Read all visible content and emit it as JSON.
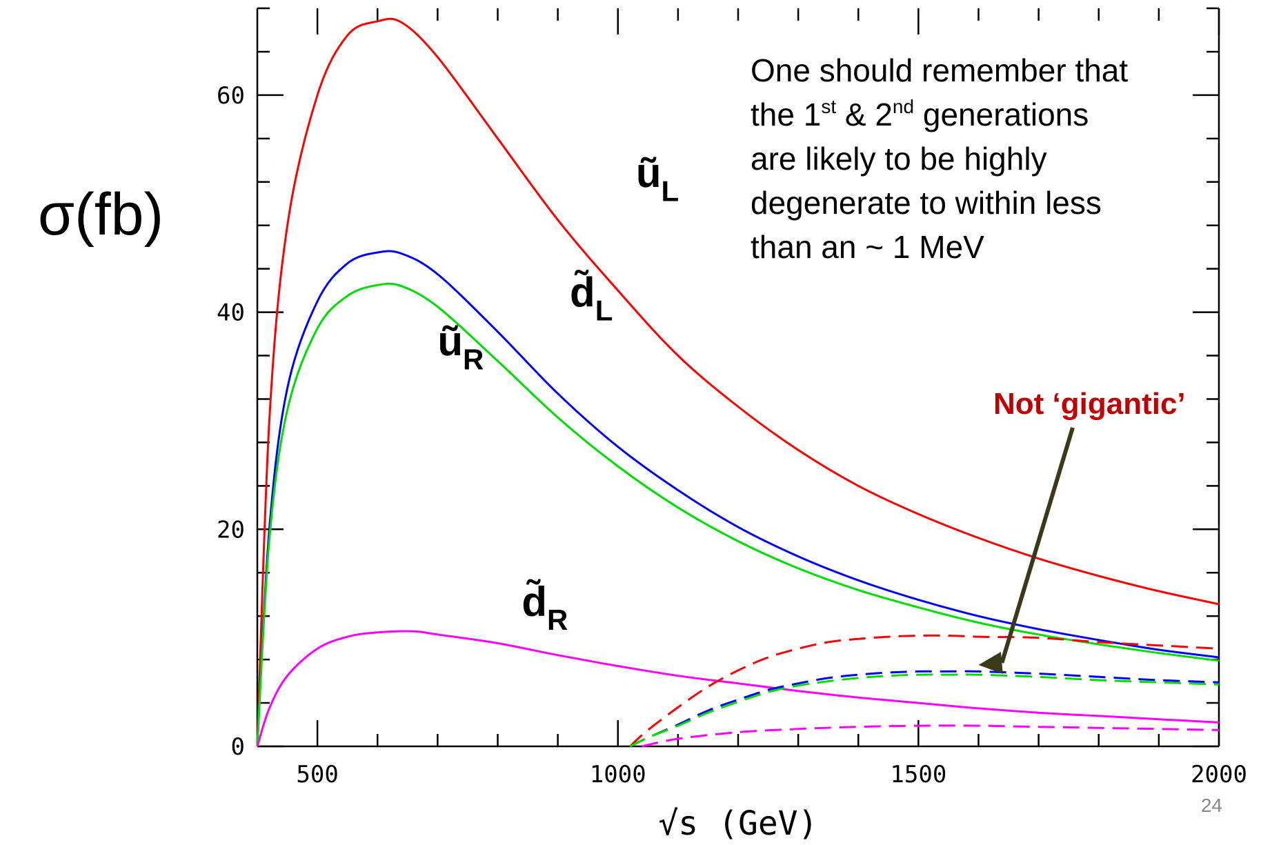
{
  "chart_data": {
    "type": "line",
    "title": "",
    "xlabel": "√s (GeV)",
    "ylabel": "σ(fb)",
    "ylabel_axis": "σ (fb)",
    "xlim": [
      400,
      2000
    ],
    "ylim": [
      0,
      68
    ],
    "x_ticks": [
      500,
      1000,
      1500,
      2000
    ],
    "y_ticks": [
      0,
      20,
      40,
      60
    ],
    "grid": false,
    "legend": "none",
    "series": [
      {
        "label_main": "ũ",
        "label_sub": "L",
        "color": "#ff0000",
        "style": "solid",
        "x": [
          400,
          420,
          450,
          500,
          550,
          600,
          640,
          700,
          800,
          900,
          1000,
          1100,
          1200,
          1300,
          1400,
          1500,
          1600,
          1700,
          1800,
          1900,
          2000
        ],
        "y": [
          0,
          30,
          48,
          60,
          65.5,
          66.8,
          66.7,
          63.5,
          56,
          48.5,
          42,
          36,
          31.3,
          27.3,
          24,
          21.4,
          19.2,
          17.3,
          15.7,
          14.3,
          13.1
        ]
      },
      {
        "label_main": "d̃",
        "label_sub": "L",
        "color": "#0000ff",
        "style": "solid",
        "x": [
          400,
          420,
          450,
          500,
          550,
          600,
          640,
          700,
          800,
          900,
          1000,
          1100,
          1200,
          1300,
          1400,
          1500,
          1600,
          1700,
          1800,
          1900,
          2000
        ],
        "y": [
          0,
          20,
          33,
          41,
          44.5,
          45.5,
          45.4,
          43.5,
          38.2,
          32.5,
          27.6,
          23.6,
          20.2,
          17.5,
          15.3,
          13.5,
          12,
          10.8,
          9.8,
          8.9,
          8.2
        ]
      },
      {
        "label_main": "ũ",
        "label_sub": "R",
        "color": "#00dd00",
        "style": "solid",
        "x": [
          400,
          420,
          450,
          500,
          550,
          600,
          640,
          700,
          800,
          900,
          1000,
          1100,
          1200,
          1300,
          1400,
          1500,
          1600,
          1700,
          1800,
          1900,
          2000
        ],
        "y": [
          0,
          19,
          31,
          38.5,
          41.5,
          42.5,
          42.4,
          40.5,
          35.5,
          30.3,
          25.8,
          22,
          18.9,
          16.4,
          14.4,
          12.8,
          11.4,
          10.3,
          9.4,
          8.6,
          7.9
        ]
      },
      {
        "label_main": "d̃",
        "label_sub": "R",
        "color": "#ff00ff",
        "style": "solid",
        "x": [
          400,
          420,
          450,
          500,
          550,
          600,
          660,
          700,
          800,
          900,
          1000,
          1100,
          1200,
          1300,
          1400,
          1500,
          1600,
          1700,
          1800,
          1900,
          2000
        ],
        "y": [
          0,
          3.5,
          6.5,
          9,
          10.1,
          10.5,
          10.6,
          10.3,
          9.5,
          8.4,
          7.4,
          6.5,
          5.8,
          5.1,
          4.5,
          4,
          3.5,
          3.1,
          2.8,
          2.5,
          2.2
        ]
      },
      {
        "color": "#ff0000",
        "style": "dashed",
        "x": [
          1020,
          1050,
          1100,
          1150,
          1200,
          1250,
          1300,
          1350,
          1400,
          1450,
          1500,
          1550,
          1600,
          1700,
          1800,
          1900,
          2000
        ],
        "y": [
          0,
          1.5,
          3.6,
          5.5,
          7,
          8.2,
          9,
          9.6,
          9.9,
          10.1,
          10.2,
          10.2,
          10.1,
          10,
          9.6,
          9.3,
          9
        ]
      },
      {
        "color": "#0000ff",
        "style": "dashed",
        "x": [
          1020,
          1050,
          1100,
          1150,
          1200,
          1250,
          1300,
          1350,
          1400,
          1450,
          1500,
          1550,
          1600,
          1700,
          1800,
          1900,
          2000
        ],
        "y": [
          0,
          0.8,
          2,
          3.3,
          4.3,
          5.2,
          5.8,
          6.3,
          6.6,
          6.8,
          6.9,
          6.9,
          6.9,
          6.7,
          6.4,
          6.1,
          5.9
        ]
      },
      {
        "color": "#00dd00",
        "style": "dashed",
        "x": [
          1020,
          1050,
          1100,
          1150,
          1200,
          1250,
          1300,
          1350,
          1400,
          1450,
          1500,
          1550,
          1600,
          1700,
          1800,
          1900,
          2000
        ],
        "y": [
          0,
          0.8,
          1.9,
          3.1,
          4.1,
          5,
          5.6,
          6,
          6.3,
          6.5,
          6.6,
          6.6,
          6.6,
          6.4,
          6.1,
          5.9,
          5.7
        ]
      },
      {
        "color": "#ff00ff",
        "style": "dashed",
        "x": [
          1040,
          1100,
          1200,
          1300,
          1400,
          1500,
          1600,
          1700,
          1800,
          1900,
          2000
        ],
        "y": [
          0,
          0.7,
          1.3,
          1.6,
          1.8,
          1.9,
          1.9,
          1.8,
          1.7,
          1.6,
          1.5
        ]
      }
    ],
    "annotations": {
      "note_lines": [
        {
          "a": "One should remember that"
        },
        {
          "a": "the 1",
          "sup1": "st",
          "b": " & 2",
          "sup2": "nd",
          "c": " generations"
        },
        {
          "a": "are likely to be highly"
        },
        {
          "a": "degenerate to within less"
        },
        {
          "a": "than an ~ 1 MeV"
        }
      ],
      "arrow_text": "Not ‘gigantic’",
      "arrow_from": [
        1760,
        8.3
      ],
      "arrow_to": [
        1600,
        7.5
      ],
      "arrow_color": "#3a3a1a"
    },
    "page_number": "24"
  }
}
